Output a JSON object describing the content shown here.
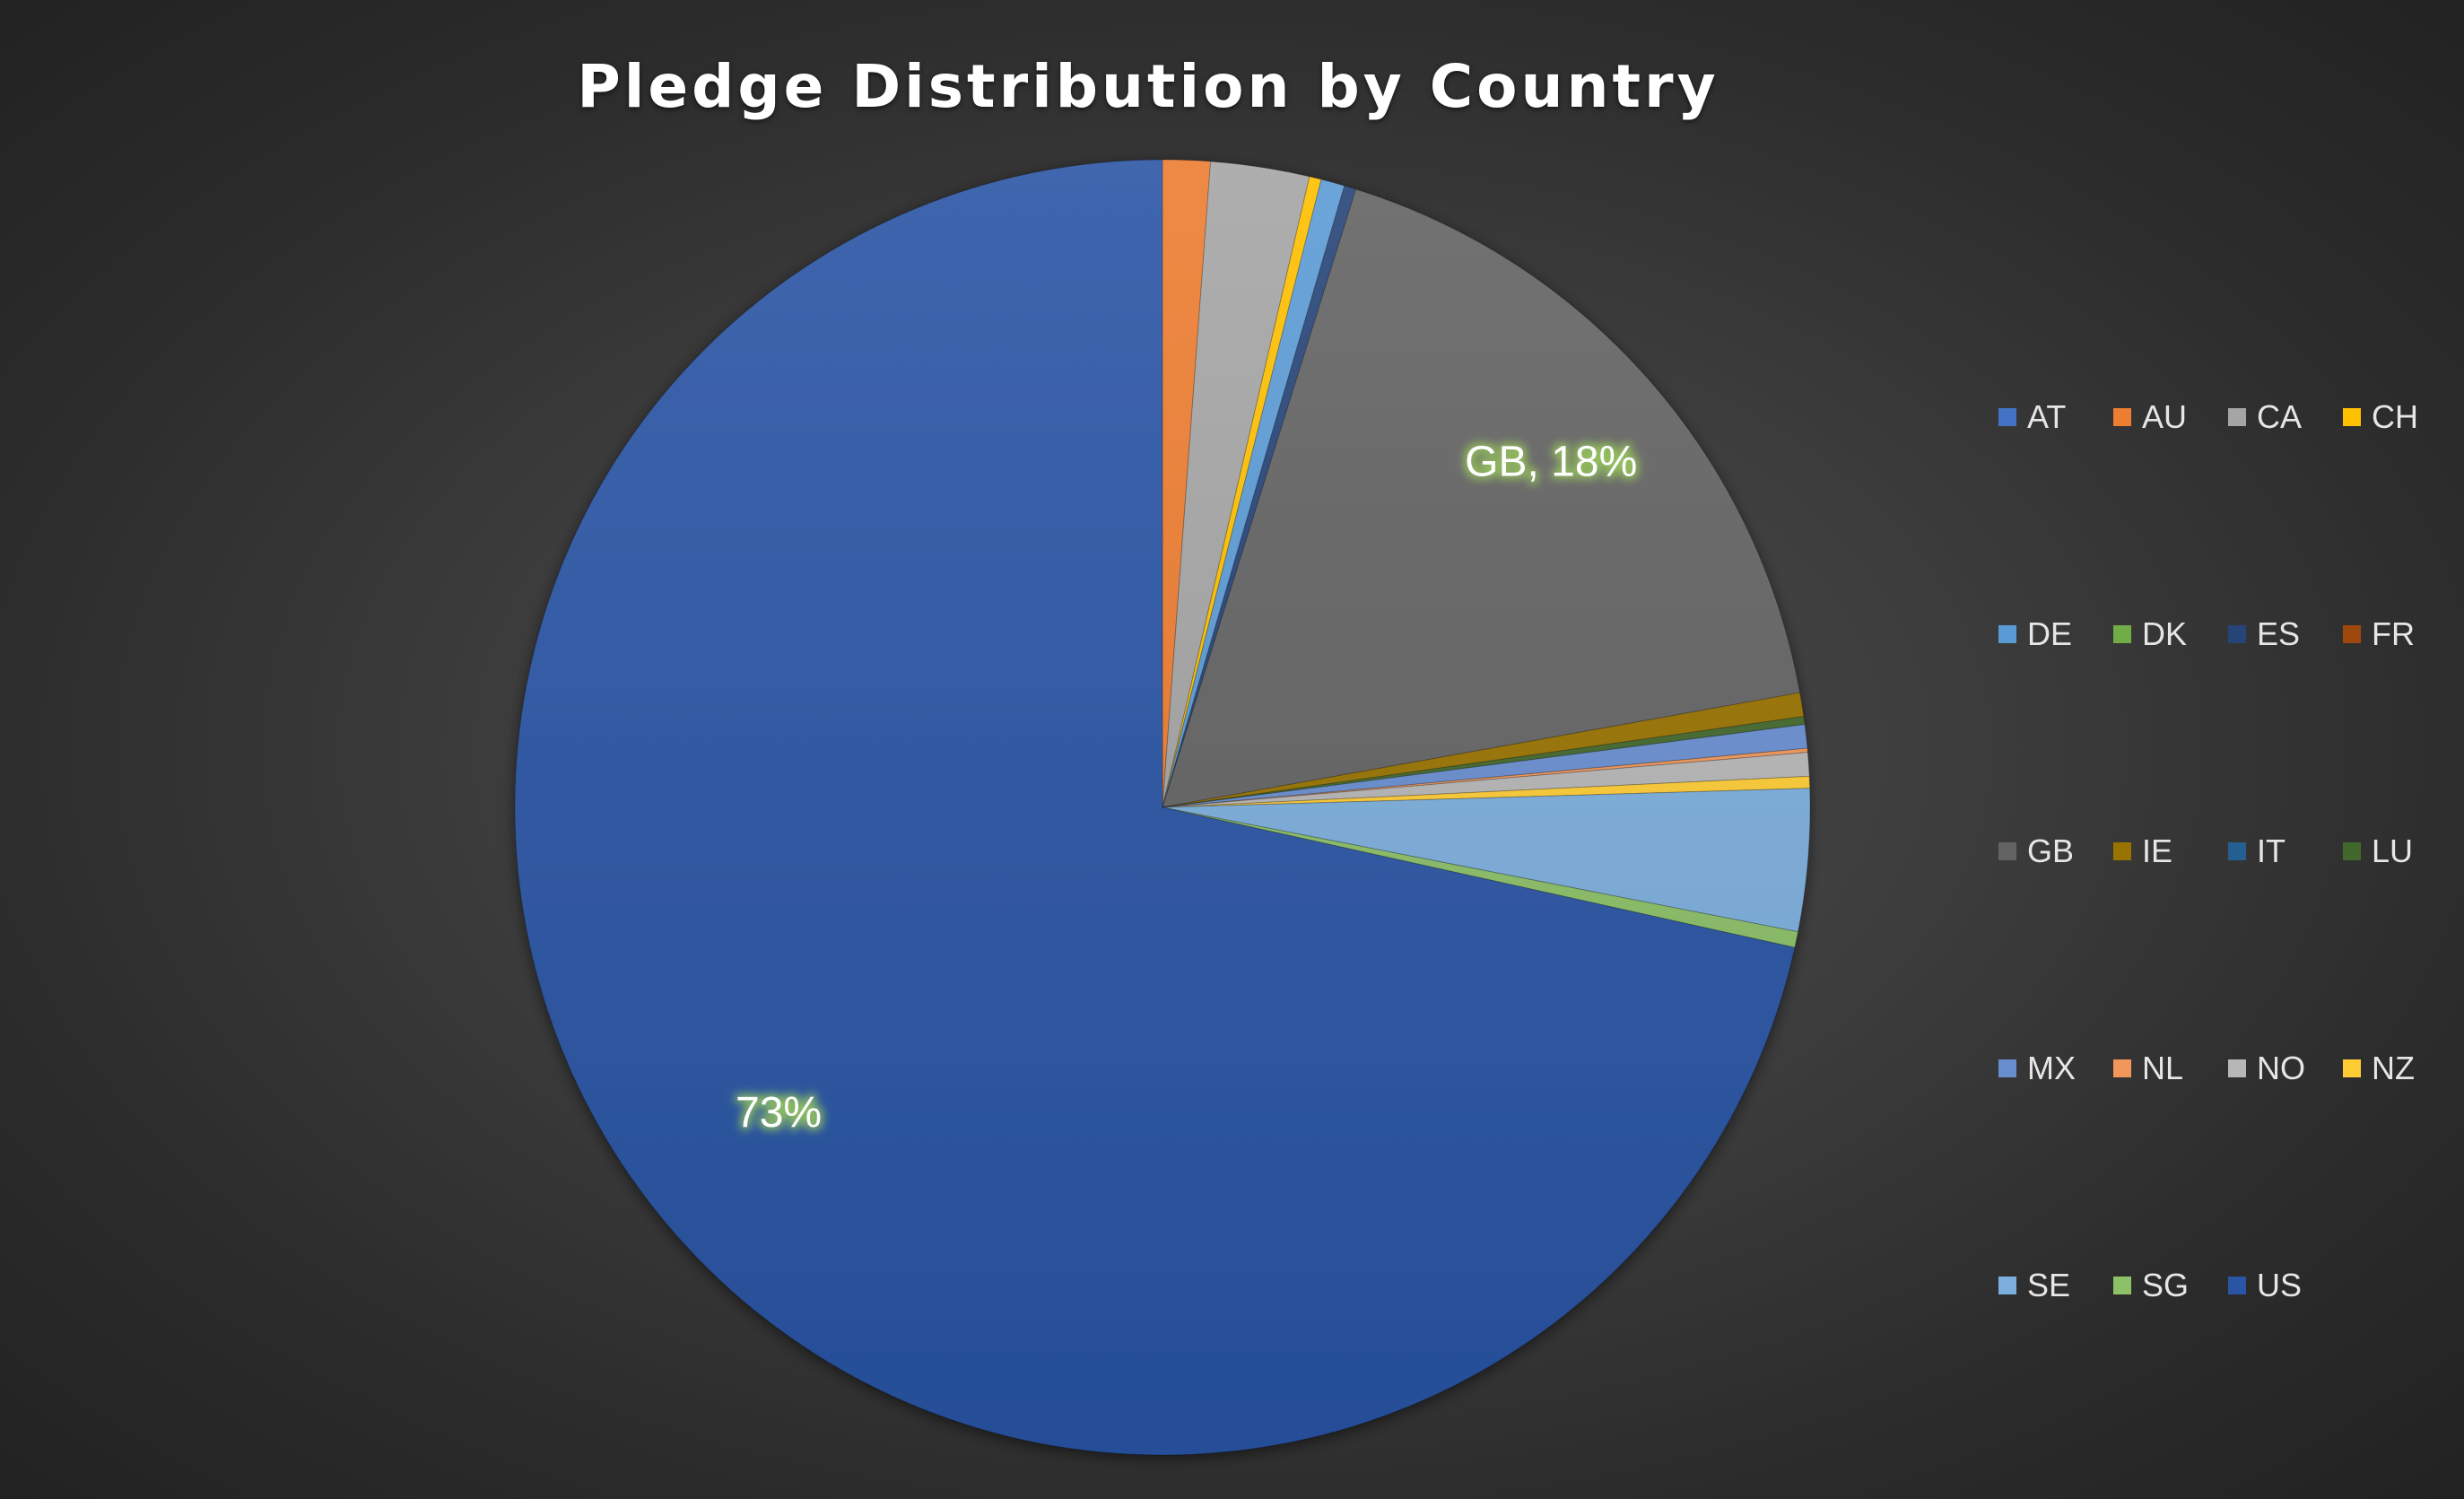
{
  "chart_data": {
    "type": "pie",
    "title": "Pledge Distribution by Country",
    "legend_position": "right",
    "categories": [
      "AT",
      "AU",
      "CA",
      "CH",
      "DE",
      "DK",
      "ES",
      "FR",
      "GB",
      "IE",
      "IT",
      "LU",
      "MX",
      "NL",
      "NO",
      "NZ",
      "SE",
      "SG",
      "US"
    ],
    "values": [
      0.0,
      1.2,
      2.5,
      0.3,
      0.6,
      0.0,
      0.3,
      0.0,
      17.6,
      0.6,
      0.0,
      0.2,
      0.6,
      0.1,
      0.6,
      0.3,
      3.6,
      0.4,
      72.6
    ],
    "colors": [
      "#4472c4",
      "#ed7d31",
      "#a5a5a5",
      "#ffc000",
      "#5b9bd5",
      "#70ad47",
      "#264478",
      "#9e480e",
      "#636363",
      "#997300",
      "#255e91",
      "#43682b",
      "#698ed0",
      "#f1975a",
      "#b7b7b7",
      "#ffcd33",
      "#7cafdd",
      "#8cc168",
      "#2a55a5"
    ],
    "data_labels": {
      "GB": "GB, 18%",
      "US": "73%"
    }
  }
}
